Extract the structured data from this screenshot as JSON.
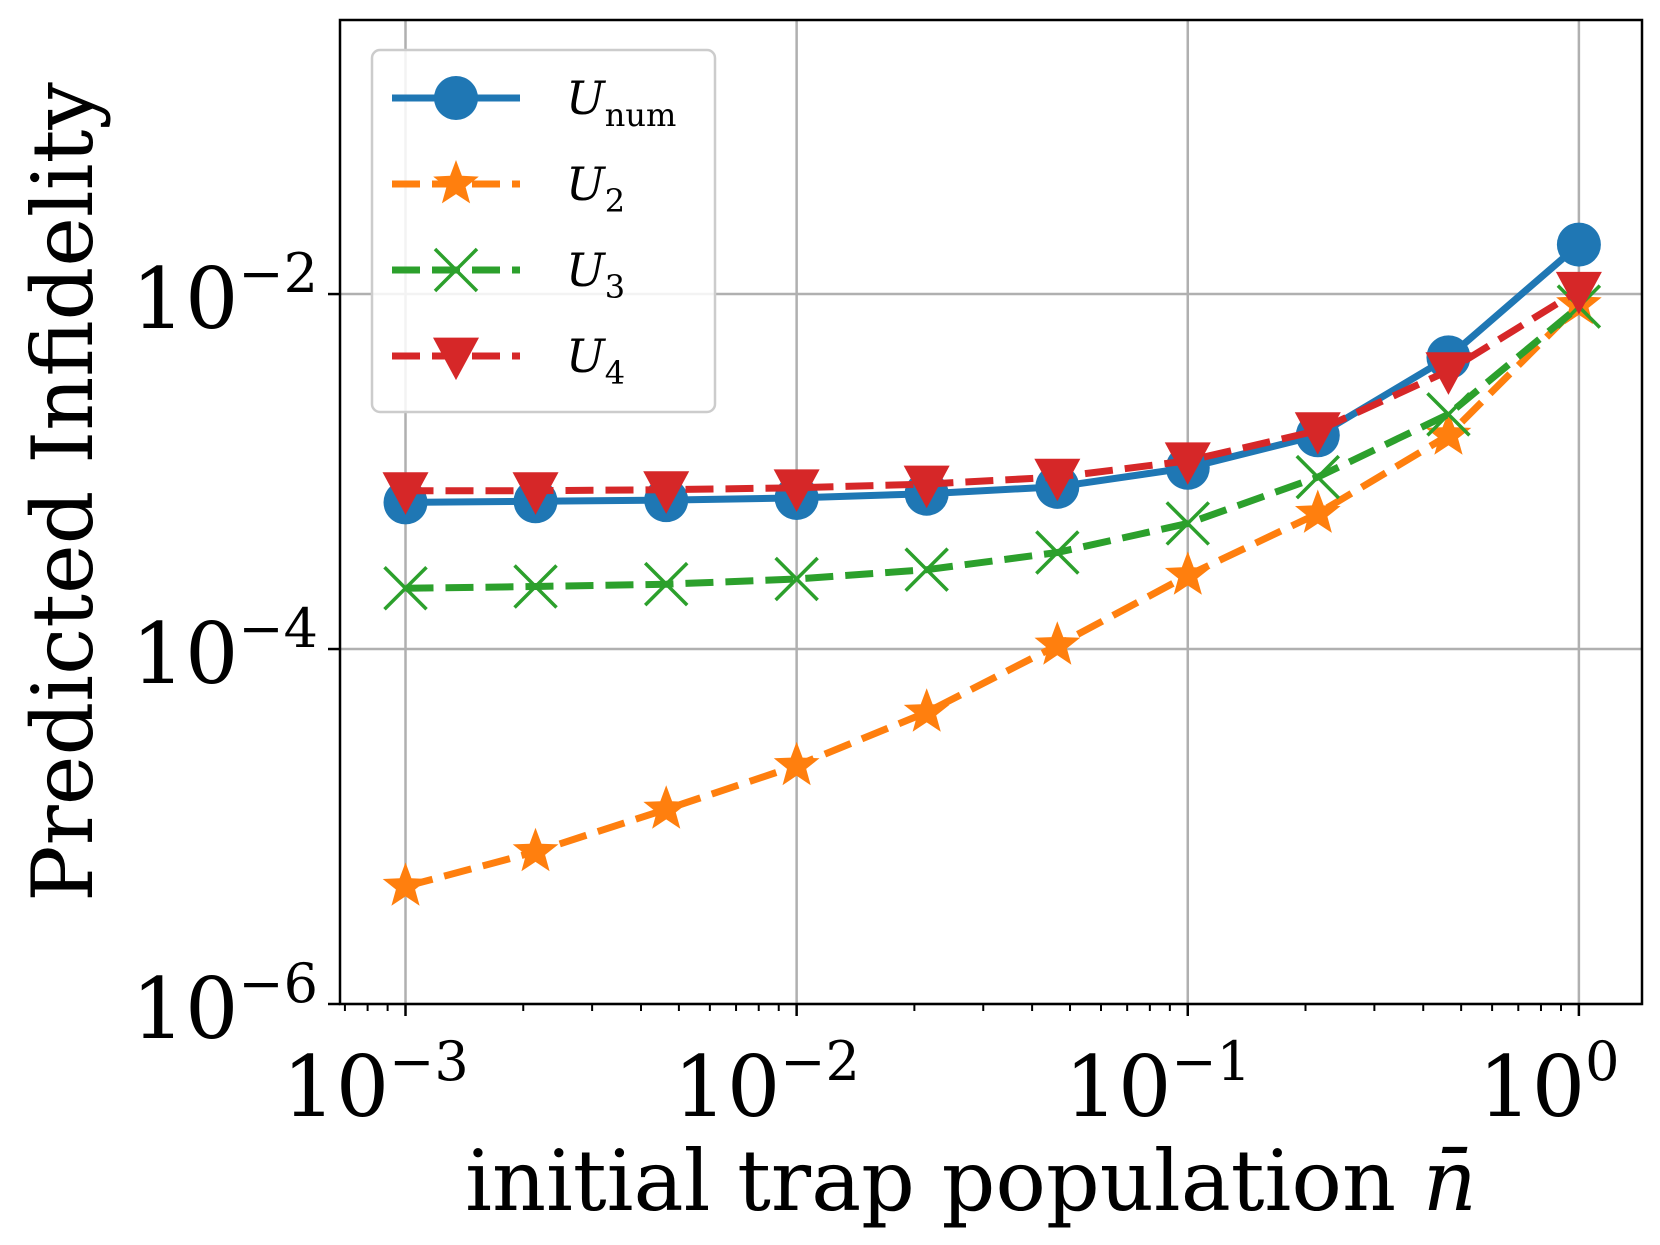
{
  "chart_data": {
    "type": "line",
    "xscale": "log",
    "yscale": "log",
    "xlim": [
      0.00068,
      1.45
    ],
    "ylim": [
      1e-06,
      0.35
    ],
    "xlabel": "initial trap population n̄",
    "xlabel_base": "initial trap population ",
    "xlabel_symbol": "n̄",
    "ylabel": "Predicted Infidelity",
    "grid": true,
    "legend_position": "upper-left",
    "x_ticks": [
      {
        "base": "10",
        "exp": "−3",
        "value": 0.001
      },
      {
        "base": "10",
        "exp": "−2",
        "value": 0.01
      },
      {
        "base": "10",
        "exp": "−1",
        "value": 0.1
      },
      {
        "base": "10",
        "exp": "0",
        "value": 1
      }
    ],
    "y_ticks": [
      {
        "base": "10",
        "exp": "−6",
        "value": 1e-06
      },
      {
        "base": "10",
        "exp": "−4",
        "value": 0.0001
      },
      {
        "base": "10",
        "exp": "−2",
        "value": 0.01
      }
    ],
    "x": [
      0.001,
      0.00215,
      0.00464,
      0.01,
      0.0215,
      0.0464,
      0.1,
      0.215,
      0.464,
      1.0
    ],
    "series": [
      {
        "name": "U_num",
        "label_main": "U",
        "label_sub": "num",
        "color": "#1f77b4",
        "linestyle": "solid",
        "marker": "circle",
        "values": [
          0.00067,
          0.00068,
          0.00069,
          0.00071,
          0.00075,
          0.00082,
          0.00105,
          0.0016,
          0.0044,
          0.019
        ]
      },
      {
        "name": "U_2",
        "label_main": "U",
        "label_sub": "2",
        "color": "#ff7f0e",
        "linestyle": "dashed",
        "marker": "star",
        "values": [
          4.6e-06,
          7.2e-06,
          1.25e-05,
          2.2e-05,
          4.4e-05,
          0.000105,
          0.00026,
          0.00058,
          0.0016,
          0.0087
        ]
      },
      {
        "name": "U_3",
        "label_main": "U",
        "label_sub": "3",
        "color": "#2ca02c",
        "linestyle": "dashed",
        "marker": "x",
        "values": [
          0.00022,
          0.000225,
          0.000232,
          0.000248,
          0.00028,
          0.00035,
          0.00051,
          0.00093,
          0.0021,
          0.0085
        ]
      },
      {
        "name": "U_4",
        "label_main": "U",
        "label_sub": "4",
        "color": "#d62728",
        "linestyle": "dashed",
        "marker": "triangle-down",
        "values": [
          0.00078,
          0.00078,
          0.00079,
          0.00081,
          0.00085,
          0.00093,
          0.00115,
          0.0017,
          0.0037,
          0.0105
        ]
      }
    ]
  }
}
